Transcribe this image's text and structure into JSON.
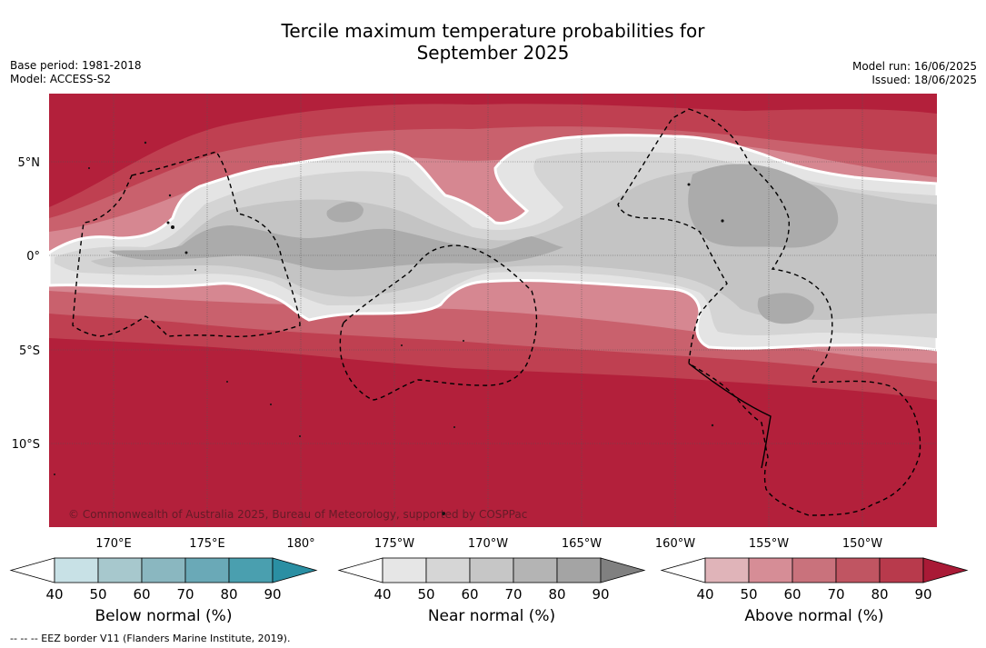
{
  "title_line1": "Tercile maximum temperature probabilities for",
  "title_line2": "September 2025",
  "base_period": "Base period: 1981-2018",
  "model": "Model: ACCESS-S2",
  "model_run": "Model run: 16/06/2025",
  "issued": "Issued: 18/06/2025",
  "lat_labels": [
    "5°N",
    "0°",
    "5°S",
    "10°S"
  ],
  "lon_labels": [
    "170°E",
    "175°E",
    "180°",
    "175°W",
    "170°W",
    "165°W",
    "160°W",
    "155°W",
    "150°W"
  ],
  "copyright": "© Commonwealth of Australia 2025, Bureau of Meteorology, supported by COSPPac",
  "colorbars": [
    {
      "label": "Below normal (%)",
      "ticks": [
        "40",
        "50",
        "60",
        "70",
        "80",
        "90"
      ],
      "colors": [
        "#ffffff",
        "#c8e1e6",
        "#a7c8cd",
        "#8ab7c0",
        "#6aa9b7",
        "#4a9faf",
        "#2a8fa3"
      ]
    },
    {
      "label": "Near normal (%)",
      "ticks": [
        "40",
        "50",
        "60",
        "70",
        "80",
        "90"
      ],
      "colors": [
        "#ffffff",
        "#e6e6e6",
        "#d6d6d6",
        "#c6c6c6",
        "#b4b4b4",
        "#a4a4a4",
        "#808080"
      ]
    },
    {
      "label": "Above normal (%)",
      "ticks": [
        "40",
        "50",
        "60",
        "70",
        "80",
        "90"
      ],
      "colors": [
        "#ffffff",
        "#e0b4b9",
        "#d68d96",
        "#c9727c",
        "#c05562",
        "#b83a4c",
        "#a91a36"
      ]
    }
  ],
  "footer": "--  --  -- EEZ border V11 (Flanders Marine Institute, 2019)."
}
